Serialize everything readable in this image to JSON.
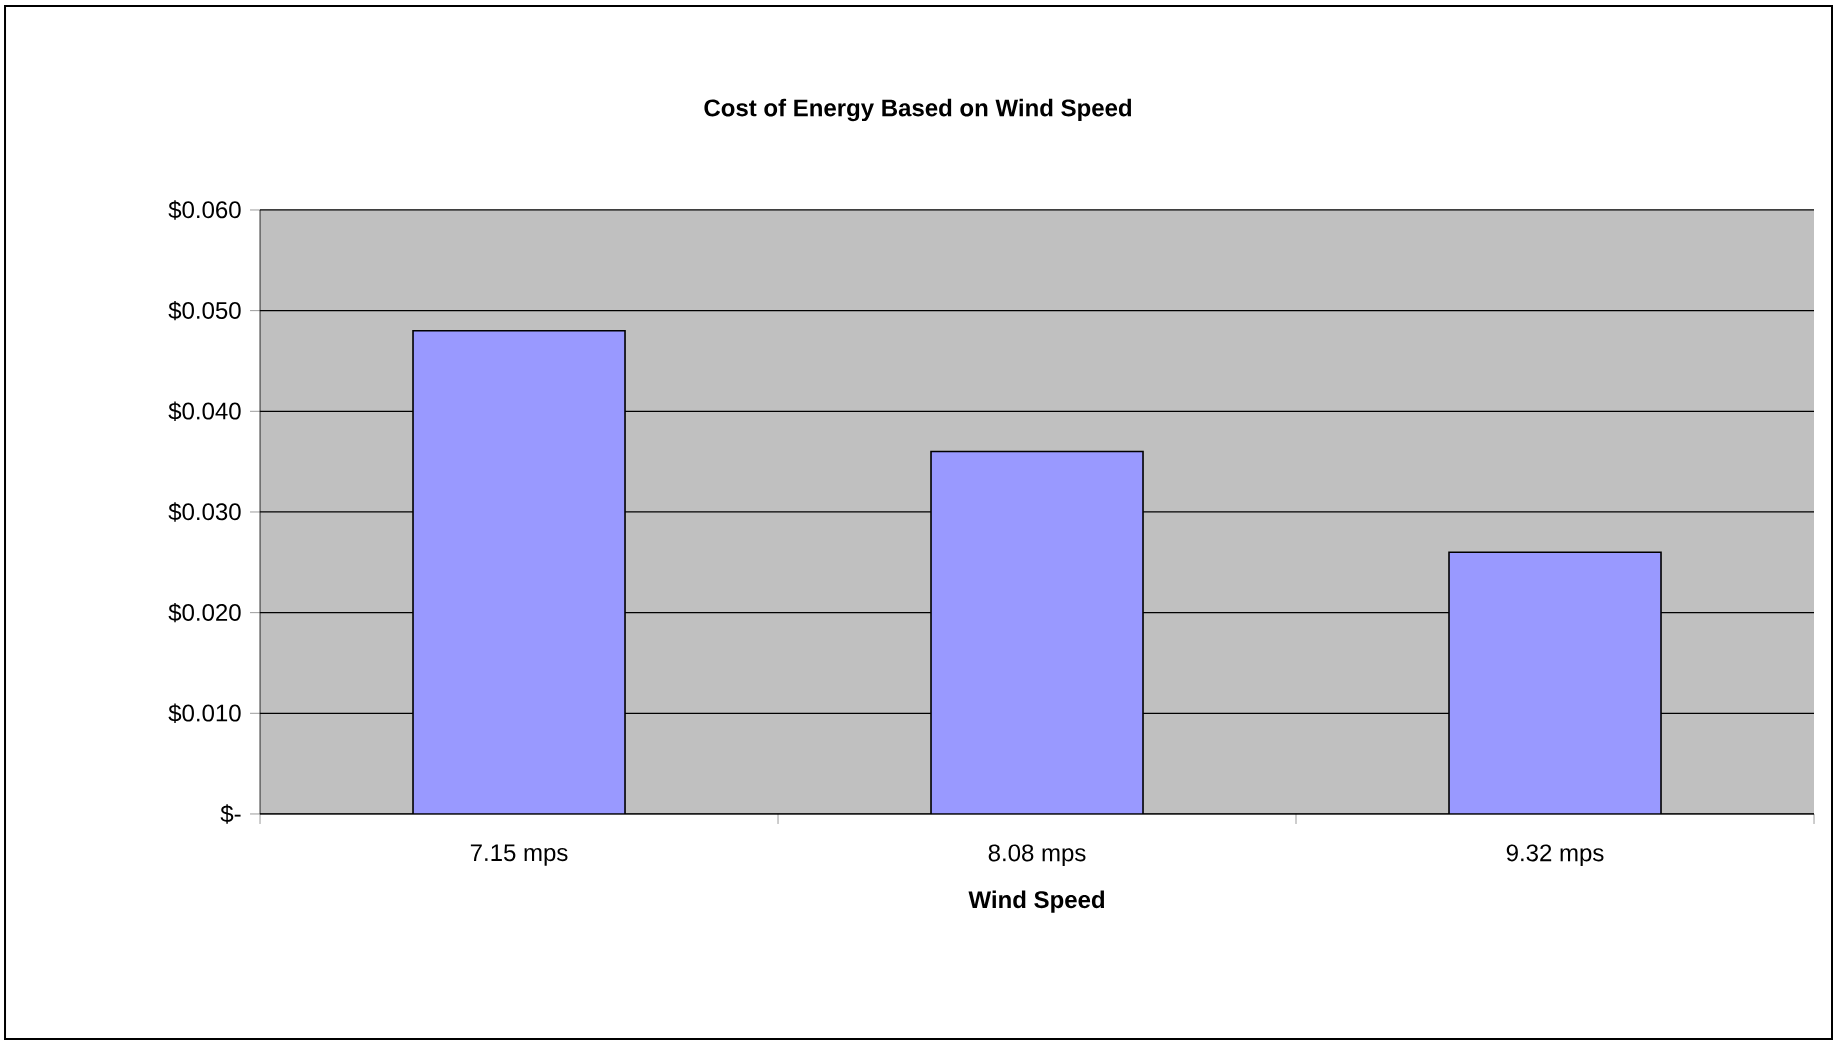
{
  "chart_data": {
    "type": "bar",
    "title": "Cost of Energy Based on Wind Speed",
    "xlabel": "Wind Speed",
    "categories": [
      "7.15 mps",
      "8.08 mps",
      "9.32 mps"
    ],
    "values": [
      0.048,
      0.036,
      0.026
    ],
    "color": "#9999ff",
    "ylim": [
      0,
      0.06
    ],
    "yticks": [
      {
        "value": 0,
        "label": "$-"
      },
      {
        "value": 0.01,
        "label": "$0.010"
      },
      {
        "value": 0.02,
        "label": "$0.020"
      },
      {
        "value": 0.03,
        "label": "$0.030"
      },
      {
        "value": 0.04,
        "label": "$0.040"
      },
      {
        "value": 0.05,
        "label": "$0.050"
      },
      {
        "value": 0.06,
        "label": "$0.060"
      }
    ],
    "grid": "y"
  }
}
